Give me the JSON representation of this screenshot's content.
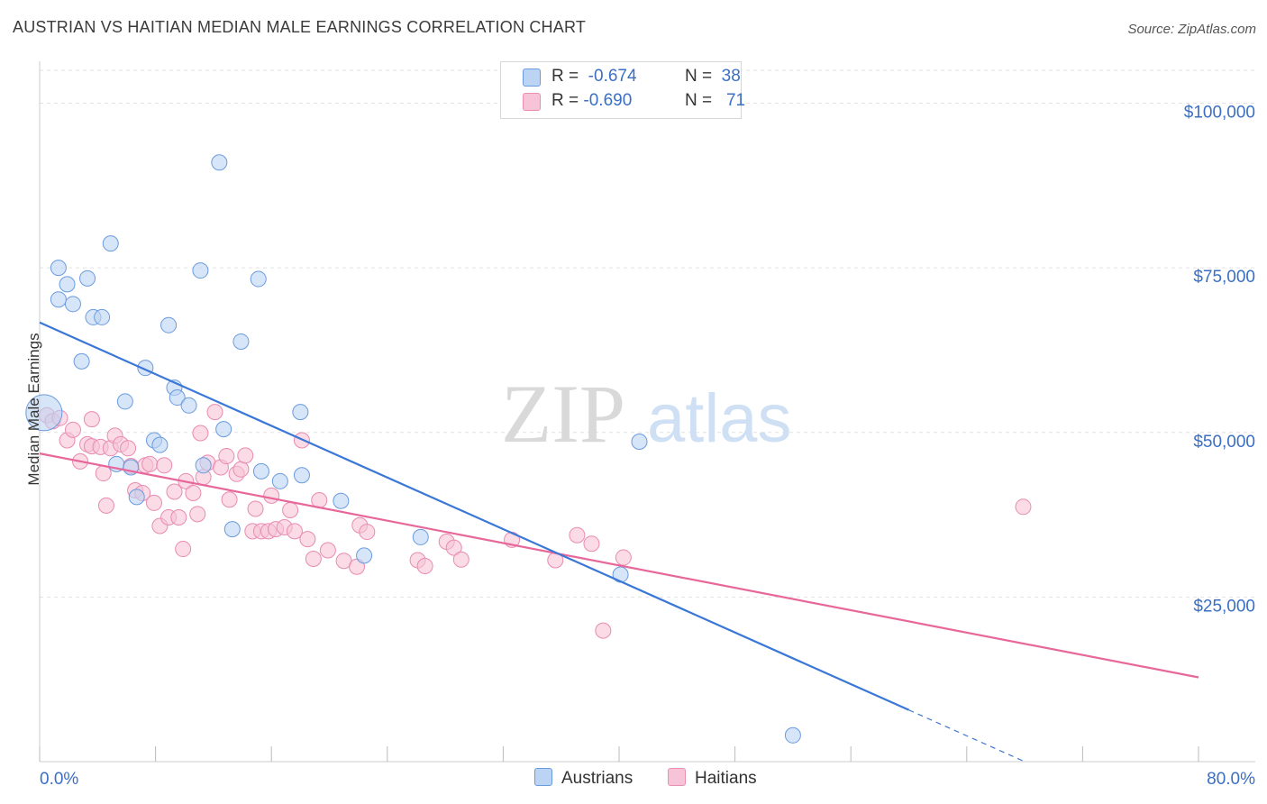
{
  "title": "AUSTRIAN VS HAITIAN MEDIAN MALE EARNINGS CORRELATION CHART",
  "source": "Source: ZipAtlas.com",
  "colors": {
    "blue": "#3a77d6",
    "blue_fill": "#bcd4f4",
    "pink": "#e8679a",
    "pink_fill": "#f7c3d6",
    "value_text": "#3a6fc4"
  },
  "legend": {
    "austrians": {
      "r_label": "R =",
      "r_value": "-0.674",
      "n_label": "N =",
      "n_value": "38"
    },
    "haitians": {
      "r_label": "R =",
      "r_value": "-0.690",
      "n_label": "N =",
      "n_value": "71"
    }
  },
  "watermark": {
    "zip": "ZIP",
    "atlas": "atlas"
  },
  "chart_data": {
    "type": "scatter",
    "title": "AUSTRIAN VS HAITIAN MEDIAN MALE EARNINGS CORRELATION CHART",
    "xlabel": "",
    "ylabel": "Median Male Earnings",
    "xlim": [
      0,
      80
    ],
    "ylim": [
      0,
      105000
    ],
    "x_tick_labels": {
      "left": "0.0%",
      "right": "80.0%"
    },
    "y_ticks": [
      {
        "value": 25000,
        "label": "$25,000"
      },
      {
        "value": 50000,
        "label": "$50,000"
      },
      {
        "value": 75000,
        "label": "$75,000"
      },
      {
        "value": 100000,
        "label": "$100,000"
      }
    ],
    "x_tick_values": [
      0,
      8,
      16,
      24,
      32,
      40,
      48,
      56,
      64,
      72,
      80
    ],
    "grid": true,
    "series": [
      {
        "name": "Austrians",
        "color": "#3a77d6",
        "points": [
          [
            0.3,
            53000
          ],
          [
            1.3,
            70200
          ],
          [
            1.3,
            75000
          ],
          [
            1.9,
            72500
          ],
          [
            2.3,
            69500
          ],
          [
            2.9,
            60800
          ],
          [
            3.3,
            73400
          ],
          [
            3.7,
            67500
          ],
          [
            4.3,
            67500
          ],
          [
            4.9,
            78700
          ],
          [
            5.3,
            45200
          ],
          [
            5.9,
            54700
          ],
          [
            6.3,
            44700
          ],
          [
            6.7,
            40200
          ],
          [
            7.3,
            59800
          ],
          [
            7.9,
            48800
          ],
          [
            8.3,
            48100
          ],
          [
            8.9,
            66300
          ],
          [
            9.3,
            56800
          ],
          [
            9.5,
            55300
          ],
          [
            10.3,
            54100
          ],
          [
            11.3,
            45000
          ],
          [
            11.1,
            74600
          ],
          [
            12.4,
            91000
          ],
          [
            12.7,
            50500
          ],
          [
            13.3,
            35300
          ],
          [
            13.9,
            63800
          ],
          [
            15.1,
            73300
          ],
          [
            15.3,
            44100
          ],
          [
            16.6,
            42600
          ],
          [
            18.0,
            53100
          ],
          [
            18.1,
            43500
          ],
          [
            20.8,
            39600
          ],
          [
            22.4,
            31300
          ],
          [
            26.3,
            34100
          ],
          [
            40.1,
            28400
          ],
          [
            41.4,
            48600
          ],
          [
            52.0,
            4000
          ]
        ],
        "trend": {
          "x_start": 0,
          "y_start": 66700,
          "x_solid_end": 60,
          "x_end": 68,
          "y_end": 0
        }
      },
      {
        "name": "Haitians",
        "color": "#e8679a",
        "points": [
          [
            0.5,
            52600
          ],
          [
            0.9,
            51700
          ],
          [
            1.4,
            52200
          ],
          [
            1.9,
            48800
          ],
          [
            2.3,
            50400
          ],
          [
            2.8,
            45600
          ],
          [
            3.3,
            48200
          ],
          [
            3.6,
            47900
          ],
          [
            3.6,
            52000
          ],
          [
            4.2,
            47800
          ],
          [
            4.4,
            43800
          ],
          [
            4.6,
            38900
          ],
          [
            4.9,
            47600
          ],
          [
            5.2,
            49500
          ],
          [
            5.6,
            48200
          ],
          [
            6.1,
            47600
          ],
          [
            6.3,
            44900
          ],
          [
            6.6,
            41200
          ],
          [
            7.1,
            40800
          ],
          [
            7.3,
            45000
          ],
          [
            7.6,
            45200
          ],
          [
            7.9,
            39300
          ],
          [
            8.3,
            35800
          ],
          [
            8.6,
            45000
          ],
          [
            8.9,
            37100
          ],
          [
            9.3,
            41000
          ],
          [
            9.6,
            37100
          ],
          [
            9.9,
            32300
          ],
          [
            10.1,
            42600
          ],
          [
            10.6,
            40800
          ],
          [
            10.9,
            37600
          ],
          [
            11.1,
            49900
          ],
          [
            11.3,
            43200
          ],
          [
            11.6,
            45400
          ],
          [
            12.1,
            53100
          ],
          [
            12.5,
            44700
          ],
          [
            12.9,
            46400
          ],
          [
            13.1,
            39800
          ],
          [
            13.6,
            43700
          ],
          [
            13.9,
            44400
          ],
          [
            14.2,
            46500
          ],
          [
            14.7,
            35000
          ],
          [
            14.9,
            38400
          ],
          [
            15.3,
            35000
          ],
          [
            15.8,
            35000
          ],
          [
            16.0,
            40400
          ],
          [
            16.3,
            35300
          ],
          [
            16.9,
            35600
          ],
          [
            17.3,
            38200
          ],
          [
            17.6,
            35000
          ],
          [
            18.1,
            48800
          ],
          [
            18.5,
            33800
          ],
          [
            18.9,
            30800
          ],
          [
            19.3,
            39700
          ],
          [
            19.9,
            32100
          ],
          [
            21.0,
            30500
          ],
          [
            21.9,
            29600
          ],
          [
            22.1,
            35900
          ],
          [
            22.6,
            34900
          ],
          [
            26.1,
            30600
          ],
          [
            26.6,
            29700
          ],
          [
            28.1,
            33400
          ],
          [
            28.6,
            32500
          ],
          [
            29.1,
            30700
          ],
          [
            32.6,
            33700
          ],
          [
            35.6,
            30600
          ],
          [
            37.1,
            34400
          ],
          [
            38.1,
            33100
          ],
          [
            38.9,
            19900
          ],
          [
            40.3,
            31000
          ],
          [
            67.9,
            38700
          ]
        ],
        "trend": {
          "x_start": 0,
          "y_start": 46800,
          "x_end": 80,
          "y_end": 12800
        }
      }
    ]
  },
  "bottom_legend": {
    "austrians": "Austrians",
    "haitians": "Haitians"
  }
}
